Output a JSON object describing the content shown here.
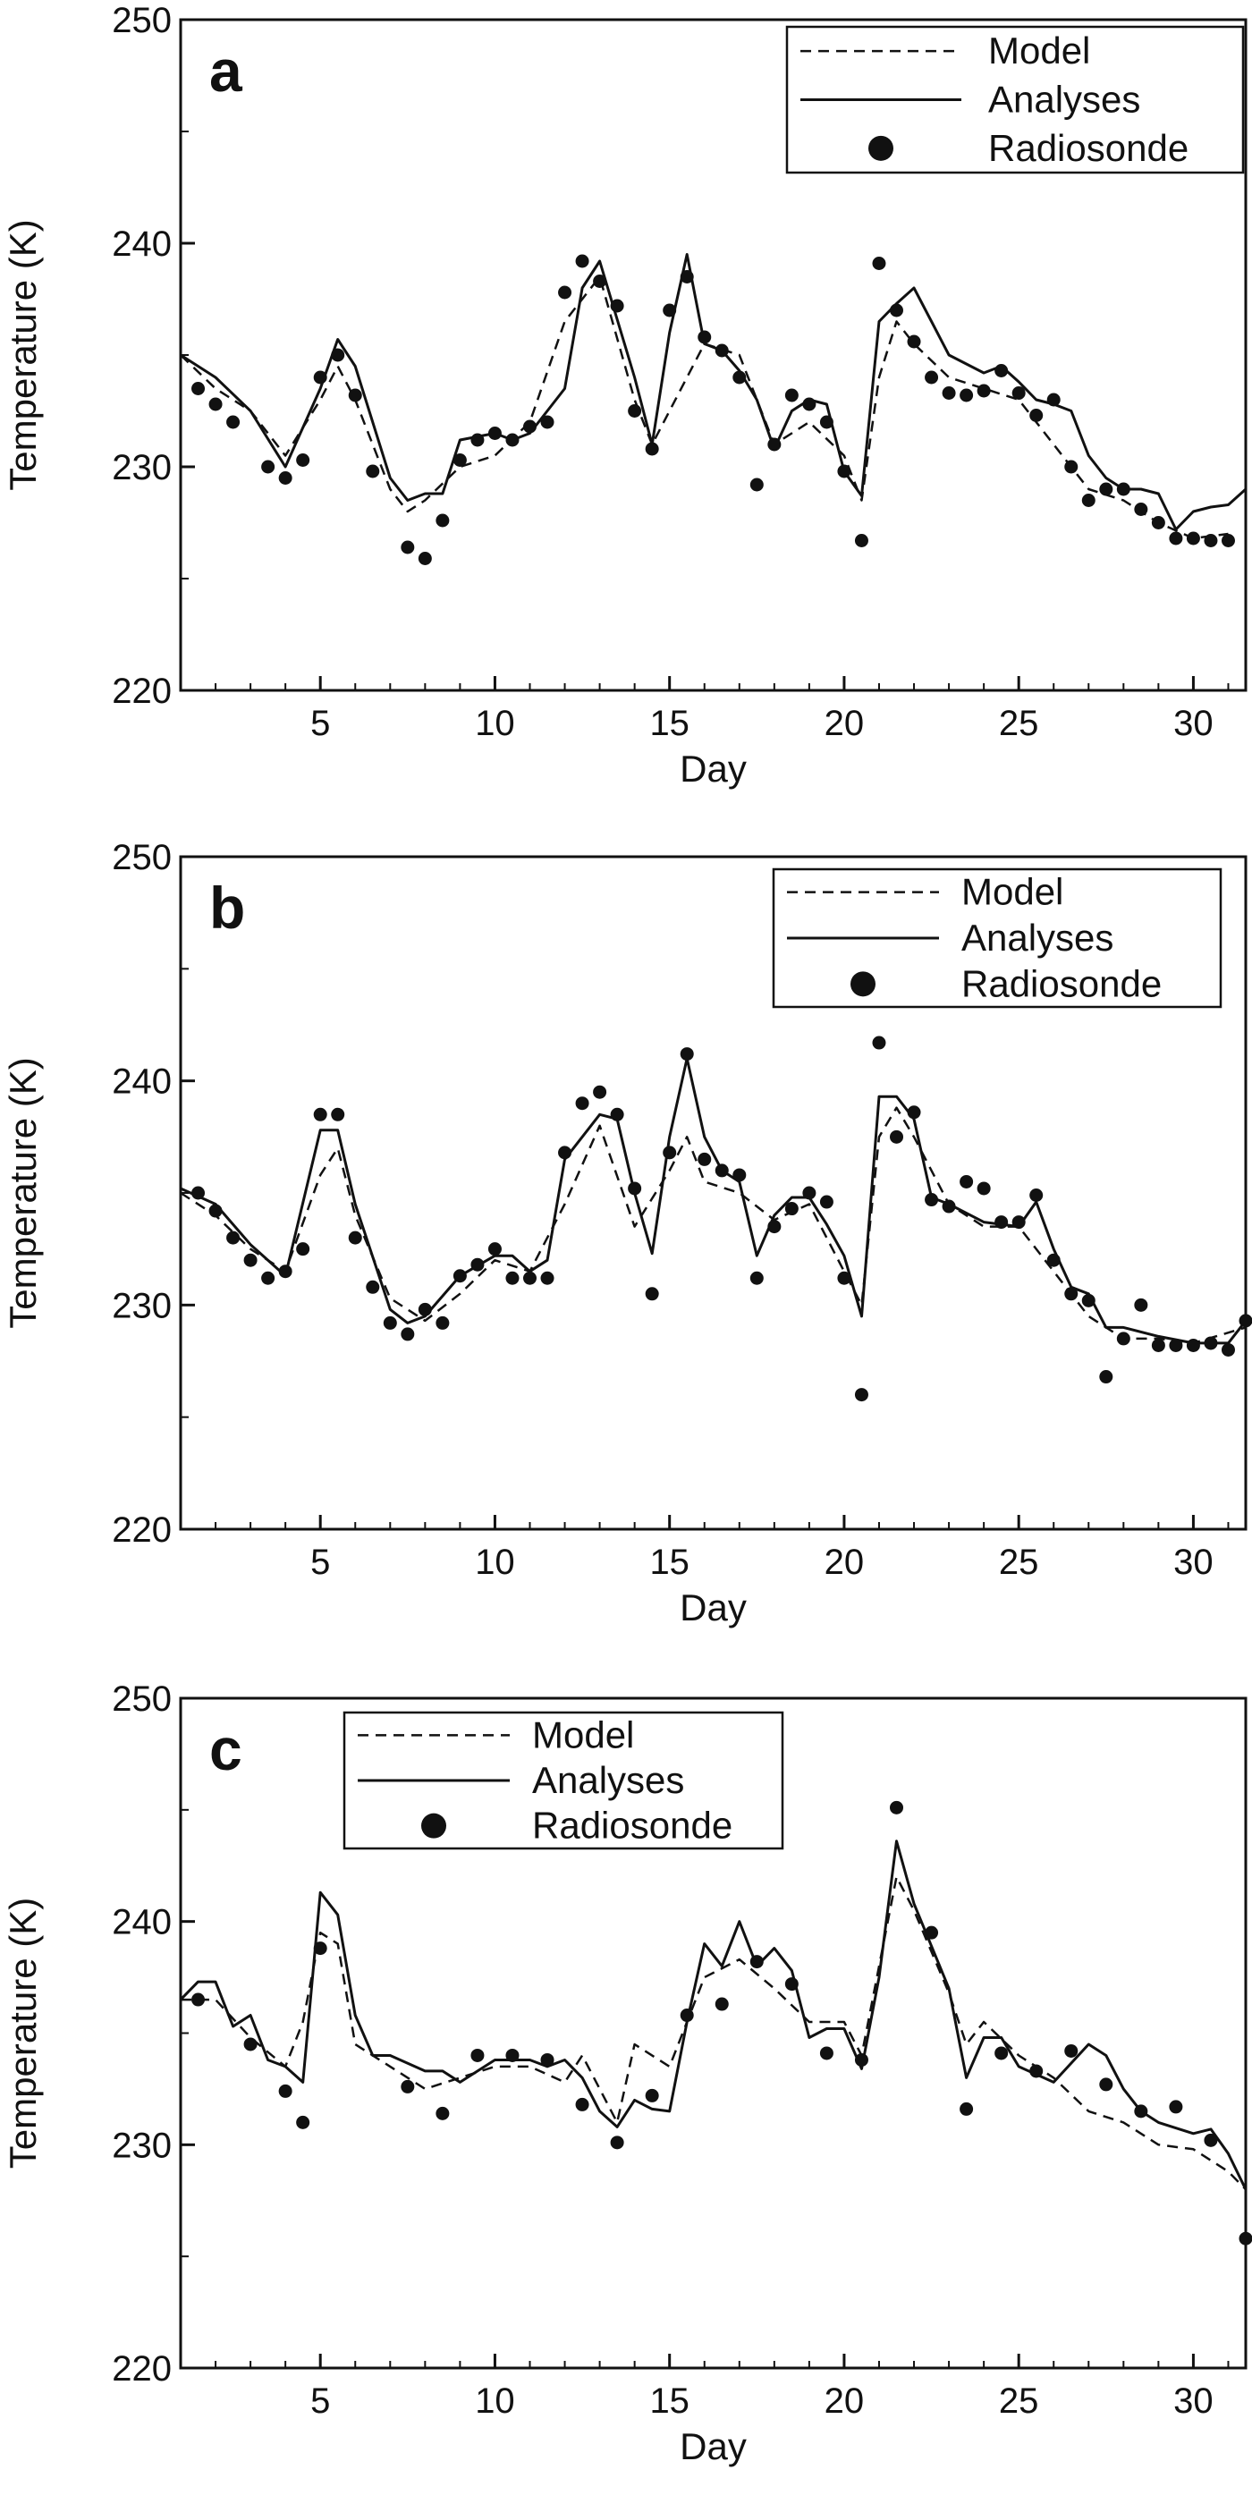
{
  "chart_data": [
    {
      "type": "line",
      "panel_label": "a",
      "xlabel": "Day",
      "ylabel": "Temperature (K)",
      "xlim": [
        1,
        31.5
      ],
      "ylim": [
        220,
        250
      ],
      "xticks": [
        5,
        10,
        15,
        20,
        25,
        30
      ],
      "yticks": [
        220,
        230,
        240,
        250
      ],
      "legend_position": "top-right",
      "series": [
        {
          "name": "Model",
          "style": "dashed",
          "x": [
            1,
            2,
            3,
            4,
            5,
            5.5,
            6,
            7,
            7.5,
            8,
            9,
            10,
            11,
            12,
            13,
            14,
            14.5,
            15,
            16,
            17,
            18,
            19,
            20,
            20.5,
            21,
            21.5,
            22,
            23,
            24,
            25,
            26,
            27,
            28,
            29,
            30,
            31
          ],
          "y": [
            235,
            233.5,
            232.5,
            230.5,
            233,
            234.5,
            233,
            229,
            228,
            228.5,
            230,
            230.5,
            232,
            236.5,
            238.5,
            233,
            231,
            232.5,
            235.5,
            235,
            231,
            232,
            230.5,
            228.5,
            234,
            236.5,
            235.5,
            234,
            233.5,
            233,
            231,
            229,
            228.5,
            227.5,
            226.8,
            227
          ]
        },
        {
          "name": "Analyses",
          "style": "solid",
          "x": [
            1,
            2,
            3,
            4,
            5,
            5.5,
            6,
            7,
            7.5,
            8,
            8.5,
            9,
            10,
            10.5,
            11,
            12,
            12.5,
            13,
            14,
            14.5,
            15,
            15.5,
            16,
            16.5,
            17,
            17.5,
            18,
            18.5,
            19,
            19.5,
            20,
            20.5,
            21,
            21.5,
            22,
            22.5,
            23,
            24,
            24.5,
            25,
            25.5,
            26,
            26.5,
            27,
            27.5,
            28,
            28.5,
            29,
            29.5,
            30,
            30.5,
            31,
            31.5
          ],
          "y": [
            235,
            234,
            232.5,
            230,
            233.5,
            235.7,
            234.5,
            229.5,
            228.5,
            228.8,
            228.8,
            231.2,
            231.5,
            231.2,
            231.5,
            233.5,
            238,
            239.2,
            234,
            231,
            236,
            239.5,
            235.5,
            235.2,
            234.3,
            233,
            230.8,
            232.5,
            233,
            232.8,
            229.8,
            228.7,
            236.5,
            237.3,
            238,
            236.5,
            235,
            234.2,
            234.5,
            233.8,
            233,
            232.8,
            232.5,
            230.5,
            229.5,
            229,
            229,
            228.8,
            227.2,
            228,
            228.2,
            228.3,
            229
          ]
        },
        {
          "name": "Radiosonde",
          "style": "points",
          "x": [
            1.5,
            2,
            2.5,
            3.5,
            4,
            4.5,
            5,
            5.5,
            6,
            6.5,
            7.5,
            8,
            8.5,
            9,
            9.5,
            10,
            10.5,
            11,
            11.5,
            12,
            12.5,
            13,
            13.5,
            14,
            14.5,
            15,
            15.5,
            16,
            16.5,
            17,
            17.5,
            18,
            18.5,
            19,
            19.5,
            20,
            20.5,
            21,
            21.5,
            22,
            22.5,
            23,
            23.5,
            24,
            24.5,
            25,
            25.5,
            26,
            26.5,
            27,
            27.5,
            28,
            28.5,
            29,
            29.5,
            30,
            30.5,
            31
          ],
          "y": [
            233.5,
            232.8,
            232,
            230,
            229.5,
            230.3,
            234,
            235,
            233.2,
            229.8,
            226.4,
            225.9,
            227.6,
            230.3,
            231.2,
            231.5,
            231.2,
            231.8,
            232,
            237.8,
            239.2,
            238.3,
            237.2,
            232.5,
            230.8,
            237,
            238.5,
            235.8,
            235.2,
            234,
            229.2,
            231,
            233.2,
            232.8,
            232,
            229.8,
            226.7,
            239.1,
            237,
            235.6,
            234,
            233.3,
            233.2,
            233.4,
            234.3,
            233.3,
            232.3,
            233,
            230,
            228.5,
            229,
            229,
            228.1,
            227.5,
            226.8,
            226.8,
            226.7,
            226.7
          ]
        }
      ]
    },
    {
      "type": "line",
      "panel_label": "b",
      "xlabel": "Day",
      "ylabel": "Temperature (K)",
      "xlim": [
        1,
        31.5
      ],
      "ylim": [
        220,
        250
      ],
      "xticks": [
        5,
        10,
        15,
        20,
        25,
        30
      ],
      "yticks": [
        220,
        230,
        240,
        250
      ],
      "legend_position": "top-right",
      "series": [
        {
          "name": "Model",
          "style": "dashed",
          "x": [
            1,
            2,
            3,
            4,
            5,
            5.5,
            6,
            7,
            8,
            9,
            10,
            11,
            12,
            13,
            14,
            15,
            15.5,
            16,
            17,
            18,
            19,
            20,
            20.5,
            21,
            21.5,
            22,
            23,
            24,
            25,
            26,
            27,
            28,
            29,
            30,
            31.5
          ],
          "y": [
            235,
            234,
            232.5,
            231.5,
            235.8,
            237,
            234,
            230.3,
            229.3,
            230.5,
            232,
            231.5,
            234.5,
            238,
            233.5,
            236,
            237.5,
            235.5,
            235,
            233.8,
            234.5,
            231.5,
            230,
            237.5,
            238.8,
            237.5,
            234.5,
            233.5,
            233.5,
            231.5,
            229.5,
            228.5,
            228.5,
            228.3,
            229
          ]
        },
        {
          "name": "Analyses",
          "style": "solid",
          "x": [
            1,
            2,
            3,
            4,
            5,
            5.5,
            6,
            7,
            7.5,
            8,
            9,
            10,
            10.5,
            11,
            11.5,
            12,
            12.5,
            13,
            13.5,
            14,
            14.5,
            15,
            15.5,
            16,
            16.5,
            17,
            17.5,
            18,
            18.5,
            19,
            19.5,
            20,
            20.5,
            21,
            21.5,
            22,
            22.5,
            23,
            24,
            25,
            25.5,
            26,
            26.5,
            27,
            27.5,
            28,
            29,
            30,
            31,
            31.5
          ],
          "y": [
            235.2,
            234.5,
            232.7,
            231.3,
            237.8,
            237.8,
            234.5,
            229.8,
            229.2,
            229.5,
            231.3,
            232.2,
            232.2,
            231.5,
            232,
            236.5,
            237.5,
            238.5,
            238.3,
            235,
            232.3,
            237.5,
            241,
            237.5,
            236,
            235.5,
            232.2,
            234,
            234.8,
            234.8,
            233.6,
            232.2,
            229.5,
            239.3,
            239.3,
            238.3,
            234.8,
            234.5,
            233.7,
            233.5,
            234.6,
            232.5,
            230.8,
            230.5,
            229,
            229,
            228.6,
            228.3,
            228.3,
            229.3
          ]
        },
        {
          "name": "Radiosonde",
          "style": "points",
          "x": [
            1.5,
            2,
            2.5,
            3,
            3.5,
            4,
            4.5,
            5,
            5.5,
            6,
            6.5,
            7,
            7.5,
            8,
            8.5,
            9,
            9.5,
            10,
            10.5,
            11,
            11.5,
            12,
            12.5,
            13,
            13.5,
            14,
            14.5,
            15,
            15.5,
            16,
            16.5,
            17,
            17.5,
            18,
            18.5,
            19,
            19.5,
            20,
            20.5,
            21,
            21.5,
            22,
            22.5,
            23,
            23.5,
            24,
            24.5,
            25,
            25.5,
            26,
            26.5,
            27,
            27.5,
            28,
            28.5,
            29,
            29.5,
            30,
            30.5,
            31,
            31.5
          ],
          "y": [
            235,
            234.2,
            233,
            232,
            231.2,
            231.5,
            232.5,
            238.5,
            238.5,
            233,
            230.8,
            229.2,
            228.7,
            229.8,
            229.2,
            231.3,
            231.8,
            232.5,
            231.2,
            231.2,
            231.2,
            236.8,
            239,
            239.5,
            238.5,
            235.2,
            230.5,
            236.8,
            241.2,
            236.5,
            236,
            235.8,
            231.2,
            233.5,
            234.3,
            235,
            234.6,
            231.2,
            226,
            241.7,
            237.5,
            238.6,
            234.7,
            234.4,
            235.5,
            235.2,
            233.7,
            233.7,
            234.9,
            232,
            230.5,
            230.2,
            226.8,
            228.5,
            230,
            228.2,
            228.2,
            228.2,
            228.3,
            228,
            229.3
          ]
        }
      ]
    },
    {
      "type": "line",
      "panel_label": "c",
      "xlabel": "Day",
      "ylabel": "Temperature (K)",
      "xlim": [
        1,
        31.5
      ],
      "ylim": [
        220,
        250
      ],
      "xticks": [
        5,
        10,
        15,
        20,
        25,
        30
      ],
      "yticks": [
        220,
        230,
        240,
        250
      ],
      "legend_position": "top-center",
      "series": [
        {
          "name": "Model",
          "style": "dashed",
          "x": [
            1,
            2,
            3,
            4,
            4.5,
            5,
            5.5,
            6,
            7,
            8,
            9,
            10,
            11,
            12,
            12.5,
            13,
            13.5,
            14,
            15,
            16,
            17,
            18,
            19,
            20,
            20.5,
            21,
            21.5,
            22,
            23,
            23.5,
            24,
            25,
            26,
            27,
            28,
            29,
            30,
            31,
            31.5
          ],
          "y": [
            236.5,
            236.5,
            234.8,
            233.5,
            235.5,
            239.5,
            239,
            234.5,
            233.5,
            232.5,
            233,
            233.5,
            233.5,
            232.8,
            234,
            232.5,
            231,
            234.5,
            233.5,
            237.5,
            238.3,
            237,
            235.5,
            235.5,
            234,
            238,
            242,
            240.5,
            236.8,
            234.5,
            235.5,
            234,
            233,
            231.5,
            231,
            230,
            229.8,
            228.8,
            228
          ]
        },
        {
          "name": "Analyses",
          "style": "solid",
          "x": [
            1,
            1.5,
            2,
            2.5,
            3,
            3.5,
            4,
            4.5,
            5,
            5.5,
            6,
            6.5,
            7,
            8,
            8.5,
            9,
            10,
            11,
            11.5,
            12,
            12.5,
            13,
            13.5,
            14,
            14.5,
            15,
            15.5,
            16,
            16.5,
            17,
            17.5,
            18,
            18.5,
            19,
            19.5,
            20,
            20.5,
            21,
            21.5,
            22,
            23,
            23.5,
            24,
            24.5,
            25,
            26,
            27,
            27.5,
            28,
            28.5,
            29,
            30,
            30.5,
            31,
            31.5
          ],
          "y": [
            236.5,
            237.3,
            237.3,
            235.3,
            235.8,
            233.8,
            233.5,
            232.8,
            241.3,
            240.3,
            235.8,
            234,
            234,
            233.3,
            233.3,
            232.8,
            233.8,
            233.8,
            233.5,
            233.8,
            233,
            231.5,
            230.8,
            232,
            231.6,
            231.5,
            235.5,
            239,
            238,
            240,
            238,
            238.8,
            237.8,
            234.8,
            235.2,
            235.2,
            233.4,
            237.5,
            243.6,
            240.8,
            237,
            233,
            234.8,
            234.8,
            233.5,
            232.8,
            234.5,
            234,
            232.5,
            231.5,
            231,
            230.5,
            230.7,
            229.6,
            228
          ]
        },
        {
          "name": "Radiosonde",
          "style": "points",
          "x": [
            1.5,
            3,
            4,
            4.5,
            5,
            7.5,
            8.5,
            9.5,
            10.5,
            11.5,
            12.5,
            13.5,
            14.5,
            15.5,
            16.5,
            17.5,
            18.5,
            19.5,
            20.5,
            21.5,
            22.5,
            23.5,
            24.5,
            25.5,
            26.5,
            27.5,
            28.5,
            29.5,
            30.5,
            31.5
          ],
          "y": [
            236.5,
            234.5,
            232.4,
            231,
            238.8,
            232.6,
            231.4,
            234,
            234,
            233.8,
            231.8,
            230.1,
            232.2,
            235.8,
            236.3,
            238.2,
            237.2,
            234.1,
            233.8,
            245.1,
            239.5,
            231.6,
            234.1,
            233.3,
            234.2,
            232.7,
            231.5,
            231.7,
            230.2,
            225.8
          ]
        }
      ]
    }
  ]
}
